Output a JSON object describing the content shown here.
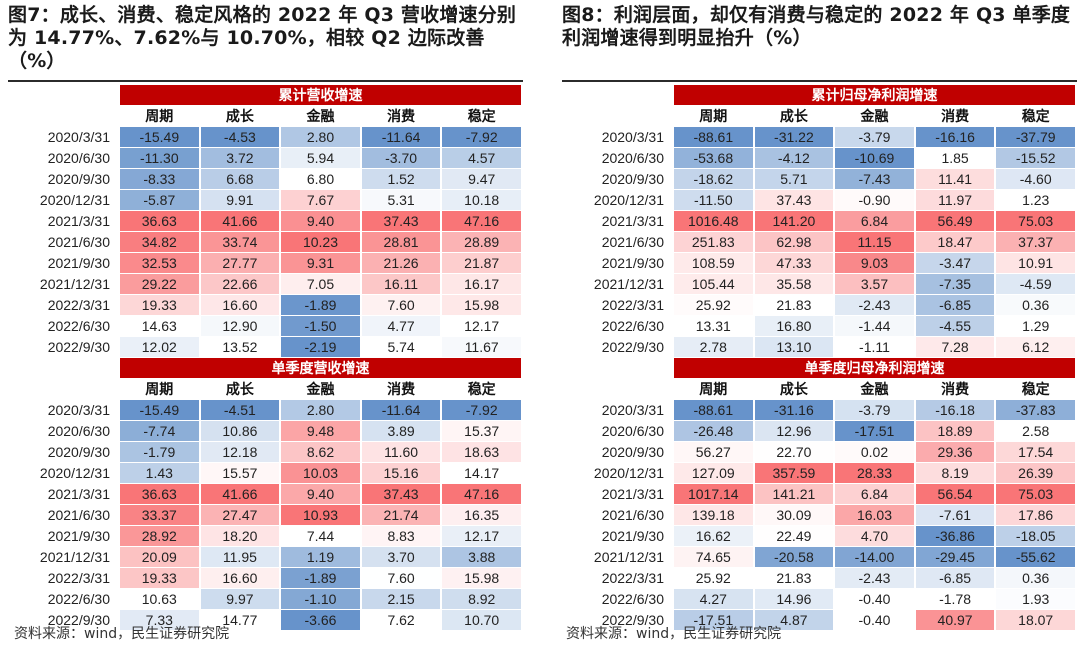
{
  "colors": {
    "band": "#c00000",
    "positive": "#f8696b",
    "negative": "#5a8ac6",
    "neutral": "#ffffff"
  },
  "left": {
    "title": "图7：成长、消费、稳定风格的 2022 年 Q3 营收增速分别为 14.77%、7.62%与 10.70%，相较 Q2 边际改善（%）",
    "source": "资料来源：wind，民生证券研究院",
    "columns": [
      "周期",
      "成长",
      "金融",
      "消费",
      "稳定"
    ],
    "sections": [
      {
        "label": "累计营收增速",
        "rows": [
          {
            "date": "2020/3/31",
            "values": [
              "-15.49",
              "-4.53",
              "2.80",
              "-11.64",
              "-7.92"
            ]
          },
          {
            "date": "2020/6/30",
            "values": [
              "-11.30",
              "3.72",
              "5.94",
              "-3.70",
              "4.57"
            ]
          },
          {
            "date": "2020/9/30",
            "values": [
              "-8.33",
              "6.68",
              "6.80",
              "1.52",
              "9.47"
            ]
          },
          {
            "date": "2020/12/31",
            "values": [
              "-5.87",
              "9.91",
              "7.67",
              "5.31",
              "10.18"
            ]
          },
          {
            "date": "2021/3/31",
            "values": [
              "36.63",
              "41.66",
              "9.40",
              "37.43",
              "47.16"
            ]
          },
          {
            "date": "2021/6/30",
            "values": [
              "34.82",
              "33.74",
              "10.23",
              "28.81",
              "28.89"
            ]
          },
          {
            "date": "2021/9/30",
            "values": [
              "32.53",
              "27.77",
              "9.31",
              "21.26",
              "21.87"
            ]
          },
          {
            "date": "2021/12/31",
            "values": [
              "29.22",
              "22.66",
              "7.05",
              "16.11",
              "16.17"
            ]
          },
          {
            "date": "2022/3/31",
            "values": [
              "19.33",
              "16.60",
              "-1.89",
              "7.60",
              "15.98"
            ]
          },
          {
            "date": "2022/6/30",
            "values": [
              "14.63",
              "12.90",
              "-1.50",
              "4.77",
              "12.17"
            ]
          },
          {
            "date": "2022/9/30",
            "values": [
              "12.02",
              "13.52",
              "-2.19",
              "5.74",
              "11.67"
            ]
          }
        ]
      },
      {
        "label": "单季度营收增速",
        "rows": [
          {
            "date": "2020/3/31",
            "values": [
              "-15.49",
              "-4.51",
              "2.80",
              "-11.64",
              "-7.92"
            ]
          },
          {
            "date": "2020/6/30",
            "values": [
              "-7.74",
              "10.86",
              "9.48",
              "3.89",
              "15.37"
            ]
          },
          {
            "date": "2020/9/30",
            "values": [
              "-1.79",
              "12.18",
              "8.62",
              "11.60",
              "18.63"
            ]
          },
          {
            "date": "2020/12/31",
            "values": [
              "1.43",
              "15.57",
              "10.03",
              "15.16",
              "14.17"
            ]
          },
          {
            "date": "2021/3/31",
            "values": [
              "36.63",
              "41.66",
              "9.40",
              "37.43",
              "47.16"
            ]
          },
          {
            "date": "2021/6/30",
            "values": [
              "33.37",
              "27.47",
              "10.93",
              "21.74",
              "16.35"
            ]
          },
          {
            "date": "2021/9/30",
            "values": [
              "28.92",
              "18.20",
              "7.44",
              "8.83",
              "12.17"
            ]
          },
          {
            "date": "2021/12/31",
            "values": [
              "20.09",
              "11.95",
              "1.19",
              "3.70",
              "3.88"
            ]
          },
          {
            "date": "2022/3/31",
            "values": [
              "19.33",
              "16.60",
              "-1.89",
              "7.60",
              "15.98"
            ]
          },
          {
            "date": "2022/6/30",
            "values": [
              "10.63",
              "9.97",
              "-1.10",
              "2.15",
              "8.92"
            ]
          },
          {
            "date": "2022/9/30",
            "values": [
              "7.33",
              "14.77",
              "-3.66",
              "7.62",
              "10.70"
            ]
          }
        ]
      }
    ]
  },
  "right": {
    "title": "图8：利润层面，却仅有消费与稳定的 2022 年 Q3 单季度利润增速得到明显抬升（%）",
    "source": "资料来源：wind，民生证券研究院",
    "columns": [
      "周期",
      "成长",
      "金融",
      "消费",
      "稳定"
    ],
    "sections": [
      {
        "label": "累计归母净利润增速",
        "rows": [
          {
            "date": "2020/3/31",
            "values": [
              "-88.61",
              "-31.22",
              "-3.79",
              "-16.16",
              "-37.79"
            ]
          },
          {
            "date": "2020/6/30",
            "values": [
              "-53.68",
              "-4.12",
              "-10.69",
              "1.85",
              "-15.52"
            ]
          },
          {
            "date": "2020/9/30",
            "values": [
              "-18.62",
              "5.71",
              "-7.43",
              "11.41",
              "-4.60"
            ]
          },
          {
            "date": "2020/12/31",
            "values": [
              "-11.50",
              "37.43",
              "-0.90",
              "11.97",
              "1.23"
            ]
          },
          {
            "date": "2021/3/31",
            "values": [
              "1016.48",
              "141.20",
              "6.84",
              "56.49",
              "75.03"
            ]
          },
          {
            "date": "2021/6/30",
            "values": [
              "251.83",
              "62.98",
              "11.15",
              "18.47",
              "37.37"
            ]
          },
          {
            "date": "2021/9/30",
            "values": [
              "108.59",
              "47.33",
              "9.03",
              "-3.47",
              "10.91"
            ]
          },
          {
            "date": "2021/12/31",
            "values": [
              "105.44",
              "35.58",
              "3.57",
              "-7.35",
              "-4.59"
            ]
          },
          {
            "date": "2022/3/31",
            "values": [
              "25.92",
              "21.83",
              "-2.43",
              "-6.85",
              "0.36"
            ]
          },
          {
            "date": "2022/6/30",
            "values": [
              "13.31",
              "16.80",
              "-1.44",
              "-4.55",
              "1.29"
            ]
          },
          {
            "date": "2022/9/30",
            "values": [
              "2.78",
              "13.10",
              "-1.11",
              "7.28",
              "6.12"
            ]
          }
        ]
      },
      {
        "label": "单季度归母净利润增速",
        "rows": [
          {
            "date": "2020/3/31",
            "values": [
              "-88.61",
              "-31.16",
              "-3.79",
              "-16.18",
              "-37.83"
            ]
          },
          {
            "date": "2020/6/30",
            "values": [
              "-26.48",
              "12.96",
              "-17.51",
              "18.89",
              "2.58"
            ]
          },
          {
            "date": "2020/9/30",
            "values": [
              "56.27",
              "22.70",
              "0.02",
              "29.36",
              "17.54"
            ]
          },
          {
            "date": "2020/12/31",
            "values": [
              "127.09",
              "357.59",
              "28.33",
              "8.19",
              "26.39"
            ]
          },
          {
            "date": "2021/3/31",
            "values": [
              "1017.14",
              "141.21",
              "6.84",
              "56.54",
              "75.03"
            ]
          },
          {
            "date": "2021/6/30",
            "values": [
              "139.18",
              "30.09",
              "16.03",
              "-7.61",
              "17.86"
            ]
          },
          {
            "date": "2021/9/30",
            "values": [
              "16.62",
              "22.49",
              "4.70",
              "-36.86",
              "-18.05"
            ]
          },
          {
            "date": "2021/12/31",
            "values": [
              "74.65",
              "-20.58",
              "-14.00",
              "-29.45",
              "-55.62"
            ]
          },
          {
            "date": "2022/3/31",
            "values": [
              "25.92",
              "21.83",
              "-2.43",
              "-6.85",
              "0.36"
            ]
          },
          {
            "date": "2022/6/30",
            "values": [
              "4.27",
              "14.96",
              "-0.40",
              "-1.78",
              "1.93"
            ]
          },
          {
            "date": "2022/9/30",
            "values": [
              "-17.51",
              "4.87",
              "-0.40",
              "40.97",
              "18.07"
            ]
          }
        ]
      }
    ]
  }
}
